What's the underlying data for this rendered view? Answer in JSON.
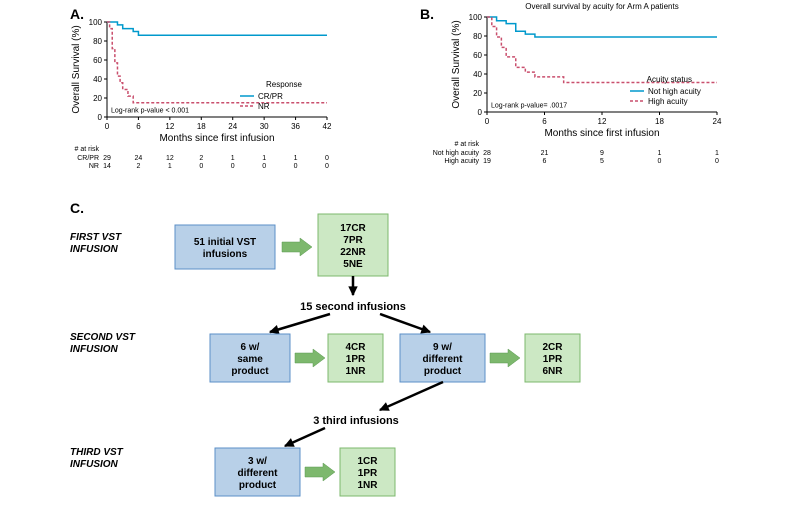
{
  "panelA": {
    "label": "A.",
    "ylabel": "Overall Survival (%)",
    "xlabel": "Months since first infusion",
    "logrank": "Log-rank p-value < 0.001",
    "legend_title": "Response",
    "series_cr": {
      "name": "CR/PR",
      "color": "#0099cc",
      "dash": "none"
    },
    "series_nr": {
      "name": "NR",
      "color": "#c94f6d",
      "dash": "3,2"
    },
    "xlim": [
      0,
      42
    ],
    "xtick_step": 6,
    "ylim": [
      0,
      100
    ],
    "ytick_step": 20,
    "km_cr": [
      [
        0,
        100
      ],
      [
        1,
        100
      ],
      [
        2,
        97
      ],
      [
        3,
        93
      ],
      [
        4,
        93
      ],
      [
        5,
        90
      ],
      [
        6,
        86
      ],
      [
        8,
        86
      ],
      [
        42,
        86
      ]
    ],
    "km_nr": [
      [
        0,
        100
      ],
      [
        0.5,
        93
      ],
      [
        1,
        72
      ],
      [
        1.5,
        57
      ],
      [
        2,
        43
      ],
      [
        2.5,
        36
      ],
      [
        3,
        29
      ],
      [
        4,
        22
      ],
      [
        5,
        15
      ],
      [
        42,
        15
      ]
    ],
    "risk_title": "# at risk",
    "risk": {
      "rowlabels": [
        "CR/PR",
        "NR"
      ],
      "rows": [
        [
          29,
          24,
          12,
          2,
          1,
          1,
          1,
          0
        ],
        [
          14,
          2,
          1,
          0,
          0,
          0,
          0,
          0
        ]
      ]
    }
  },
  "panelB": {
    "label": "B.",
    "title": "Overall survival by acuity for Arm A patients",
    "ylabel": "Overall Survival (%)",
    "xlabel": "Months since first infusion",
    "logrank": "Log-rank p-value= .0017",
    "legend_title": "Acuity status",
    "series_lo": {
      "name": "Not high acuity",
      "color": "#0099cc",
      "dash": "none"
    },
    "series_hi": {
      "name": "High acuity",
      "color": "#c94f6d",
      "dash": "3,2"
    },
    "xlim": [
      0,
      24
    ],
    "xtick_step": 6,
    "ylim": [
      0,
      100
    ],
    "ytick_step": 20,
    "km_lo": [
      [
        0,
        100
      ],
      [
        1,
        96
      ],
      [
        2,
        93
      ],
      [
        3,
        85
      ],
      [
        4,
        82
      ],
      [
        5,
        79
      ],
      [
        6,
        79
      ],
      [
        24,
        79
      ]
    ],
    "km_hi": [
      [
        0,
        100
      ],
      [
        0.5,
        90
      ],
      [
        1,
        79
      ],
      [
        1.5,
        68
      ],
      [
        2,
        58
      ],
      [
        3,
        47
      ],
      [
        4,
        42
      ],
      [
        5,
        37
      ],
      [
        6,
        37
      ],
      [
        8,
        31
      ],
      [
        24,
        31
      ]
    ],
    "risk_title": "# at risk",
    "risk": {
      "rowlabels": [
        "Not high acuity",
        "High acuity"
      ],
      "rows": [
        [
          28,
          21,
          9,
          1,
          1
        ],
        [
          19,
          6,
          5,
          0,
          0
        ]
      ]
    }
  },
  "panelC": {
    "label": "C.",
    "labels": {
      "first": "FIRST VST INFUSION",
      "second": "SECOND VST INFUSION",
      "third": "THIRD VST INFUSION"
    },
    "boxes": {
      "initial": "51 initial VST infusions",
      "initial_out": [
        "17CR",
        "7PR",
        "22NR",
        "5NE"
      ],
      "second_heading": "15 second infusions",
      "same6": "6 w/ same product",
      "same6_out": [
        "4CR",
        "1PR",
        "1NR"
      ],
      "diff9": "9 w/ different product",
      "diff9_out": [
        "2CR",
        "1PR",
        "6NR"
      ],
      "third_heading": "3 third infusions",
      "diff3": "3 w/ different product",
      "diff3_out": [
        "1CR",
        "1PR",
        "1NR"
      ]
    }
  }
}
